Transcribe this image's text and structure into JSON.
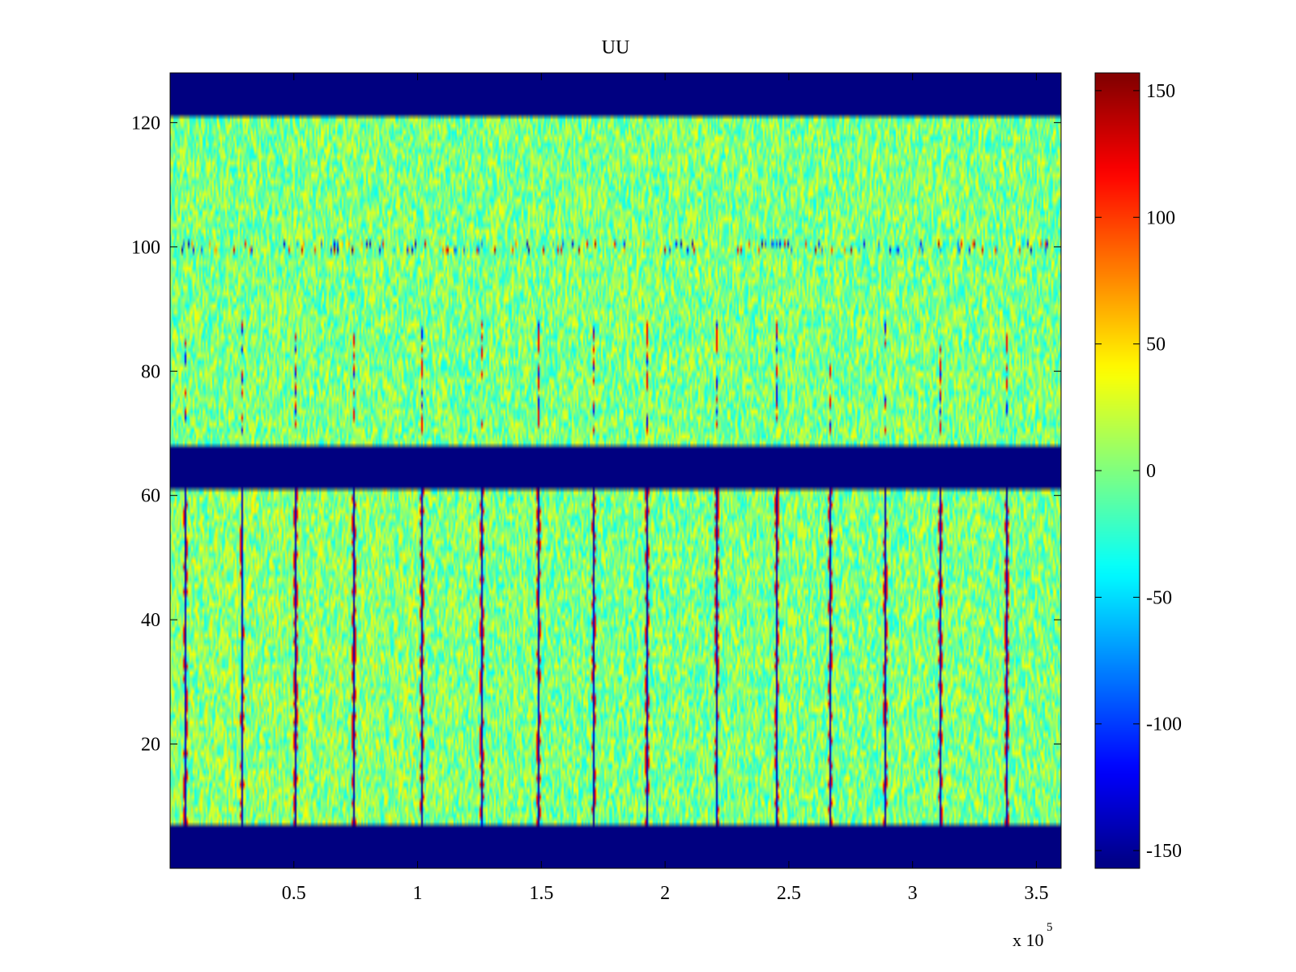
{
  "chart_data": {
    "type": "heatmap",
    "title": "UU",
    "xlabel": "",
    "ylabel": "",
    "x_multiplier": "x 10",
    "x_exponent": "5",
    "xlim": [
      0,
      3.6
    ],
    "ylim": [
      0,
      128
    ],
    "x_ticks": [
      0.5,
      1,
      1.5,
      2,
      2.5,
      3,
      3.5
    ],
    "x_tick_labels": [
      "0.5",
      "1",
      "1.5",
      "2",
      "2.5",
      "3",
      "3.5"
    ],
    "y_ticks": [
      20,
      40,
      60,
      80,
      100,
      120
    ],
    "y_tick_labels": [
      "20",
      "40",
      "60",
      "80",
      "100",
      "120"
    ],
    "colormap": "jet",
    "clim": [
      -157,
      157
    ],
    "colorbar_ticks": [
      150,
      100,
      50,
      0,
      -50,
      -100,
      -150
    ],
    "colorbar_tick_labels": [
      "150",
      "100",
      "50",
      "0",
      "-50",
      "-100",
      "-150"
    ],
    "colorbar_location": "right",
    "grid": false,
    "background_noise_range": [
      -40,
      40
    ],
    "masked_row_bands": [
      {
        "y_range": [
          0,
          7
        ],
        "value": -157
      },
      {
        "y_range": [
          61,
          68
        ],
        "value": -157
      },
      {
        "y_range": [
          121,
          128
        ],
        "value": -157
      }
    ],
    "disturbance_x_positions": [
      0.06,
      0.29,
      0.51,
      0.74,
      1.02,
      1.26,
      1.49,
      1.71,
      1.93,
      2.21,
      2.45,
      2.67,
      2.89,
      3.11,
      3.38
    ],
    "disturbance_y_range": [
      7,
      61
    ],
    "disturbance_value": -150,
    "disturbance_upper_y_range": [
      70,
      88
    ],
    "disturbance_upper_value": 120,
    "burst_row": 100,
    "burst_value_range": [
      -150,
      150
    ]
  }
}
